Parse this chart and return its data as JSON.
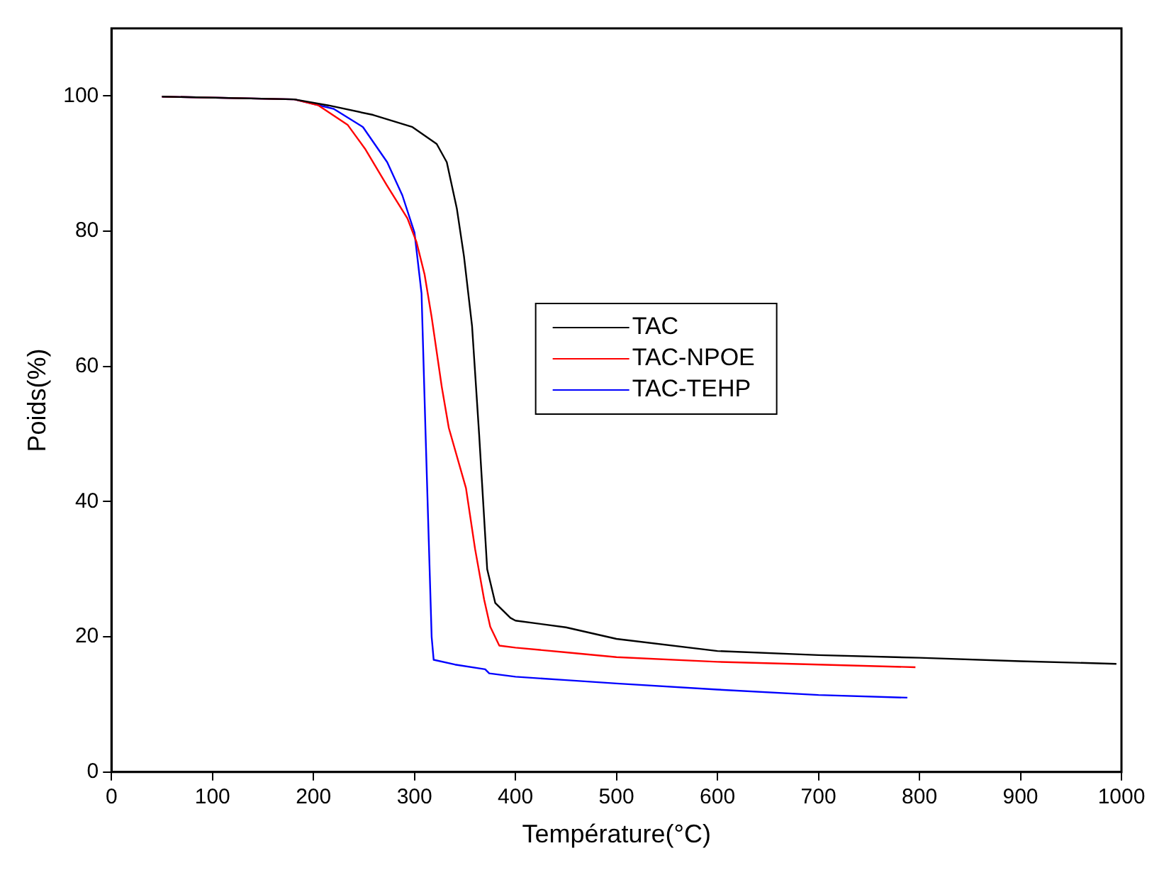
{
  "chart_data": {
    "type": "line",
    "xlabel": "Température(°C)",
    "ylabel": "Poids(%)",
    "xlim": [
      0,
      1000
    ],
    "ylim": [
      0,
      110
    ],
    "xticks": [
      0,
      100,
      200,
      300,
      400,
      500,
      600,
      700,
      800,
      900,
      1000
    ],
    "yticks": [
      0,
      20,
      40,
      60,
      80,
      100
    ],
    "grid": false,
    "legend": "right",
    "series": [
      {
        "name": "TAC",
        "color": "#000000",
        "x": [
          50,
          181,
          215,
          259,
          298,
          322,
          332,
          342,
          349,
          357,
          364,
          368,
          372,
          380,
          395,
          400,
          450,
          500,
          600,
          700,
          800,
          900,
          995
        ],
        "values": [
          99.9,
          99.5,
          98.6,
          97.2,
          95.4,
          92.9,
          90.2,
          83.3,
          76.3,
          66,
          50,
          40,
          30,
          25,
          22.8,
          22.4,
          21.4,
          19.7,
          17.9,
          17.3,
          16.9,
          16.4,
          16.0
        ]
      },
      {
        "name": "TAC-NPOE",
        "color": "#ff0000",
        "x": [
          50,
          181,
          205,
          234,
          251,
          273,
          293,
          302,
          310,
          317,
          327,
          334,
          351,
          360,
          369,
          375,
          384,
          400,
          450,
          500,
          600,
          700,
          796
        ],
        "values": [
          99.9,
          99.5,
          98.6,
          95.7,
          92.2,
          86.7,
          81.9,
          78.4,
          73.6,
          67.3,
          57,
          50.9,
          42,
          33,
          25.5,
          21.5,
          18.7,
          18.4,
          17.7,
          17,
          16.3,
          15.9,
          15.5
        ]
      },
      {
        "name": "TAC-TEHP",
        "color": "#0000ff",
        "x": [
          50,
          181,
          220,
          249,
          273,
          288,
          300,
          307,
          311,
          315,
          317,
          319,
          340,
          370,
          374,
          400,
          450,
          500,
          600,
          700,
          788
        ],
        "values": [
          99.9,
          99.5,
          98.1,
          95.4,
          90.2,
          85.3,
          79.8,
          70.8,
          50,
          30,
          20,
          16.6,
          15.9,
          15.2,
          14.6,
          14.1,
          13.6,
          13.1,
          12.2,
          11.4,
          11.0
        ]
      }
    ]
  }
}
